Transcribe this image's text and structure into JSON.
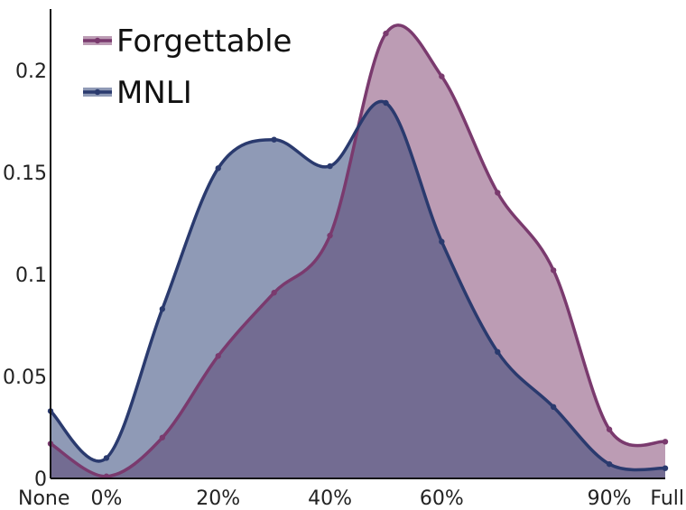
{
  "chart_data": {
    "type": "area",
    "x_ticks": [
      {
        "x": 0,
        "label": "None"
      },
      {
        "x": 1,
        "label": "0%"
      },
      {
        "x": 3,
        "label": "20%"
      },
      {
        "x": 5,
        "label": "40%"
      },
      {
        "x": 7,
        "label": "60%"
      },
      {
        "x": 10,
        "label": "90%"
      },
      {
        "x": 11,
        "label": "Full"
      }
    ],
    "y_ticks": [
      {
        "y": 0,
        "label": "0"
      },
      {
        "y": 0.05,
        "label": "0.05"
      },
      {
        "y": 0.1,
        "label": "0.1"
      },
      {
        "y": 0.15,
        "label": "0.15"
      },
      {
        "y": 0.2,
        "label": "0.2"
      }
    ],
    "xlim": [
      0,
      11
    ],
    "ylim": [
      0,
      0.23
    ],
    "legend_position": "top-left",
    "grid": false,
    "series": [
      {
        "name": "MNLI",
        "color": "#2a3a6e",
        "fill": "#8f9ab6",
        "x": [
          0,
          1,
          2,
          3,
          4,
          5,
          6,
          7,
          8,
          9,
          10,
          11
        ],
        "values": [
          0.033,
          0.01,
          0.083,
          0.152,
          0.166,
          0.153,
          0.184,
          0.116,
          0.062,
          0.035,
          0.007,
          0.005
        ]
      },
      {
        "name": "Forgettable",
        "color": "#7a3a6e",
        "fill": "#bc9cb4",
        "x": [
          0,
          1,
          2,
          3,
          4,
          5,
          6,
          7,
          8,
          9,
          10,
          11
        ],
        "values": [
          0.017,
          0.001,
          0.02,
          0.06,
          0.091,
          0.119,
          0.218,
          0.197,
          0.14,
          0.102,
          0.024,
          0.018
        ]
      }
    ],
    "overlap_fill": "#736c92"
  }
}
